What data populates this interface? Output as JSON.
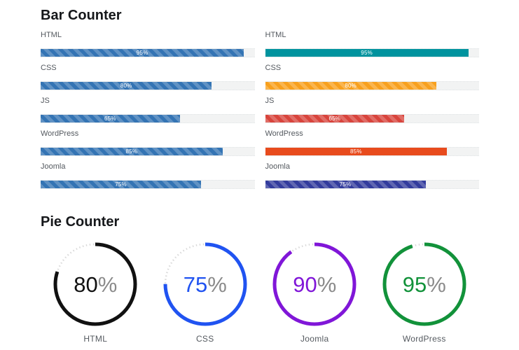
{
  "bar_section": {
    "title": "Bar Counter",
    "track_color": "#f2f3f3",
    "left": [
      {
        "label": "HTML",
        "value": 95,
        "value_label": "95%",
        "color": "#3474b4",
        "striped": true
      },
      {
        "label": "CSS",
        "value": 80,
        "value_label": "80%",
        "color": "#3474b4",
        "striped": true
      },
      {
        "label": "JS",
        "value": 65,
        "value_label": "65%",
        "color": "#3474b4",
        "striped": true
      },
      {
        "label": "WordPress",
        "value": 85,
        "value_label": "85%",
        "color": "#3474b4",
        "striped": true
      },
      {
        "label": "Joomla",
        "value": 75,
        "value_label": "75%",
        "color": "#3474b4",
        "striped": true
      }
    ],
    "right": [
      {
        "label": "HTML",
        "value": 95,
        "value_label": "95%",
        "color": "#00939e",
        "striped": false
      },
      {
        "label": "CSS",
        "value": 80,
        "value_label": "80%",
        "color": "#f8a01d",
        "striped": true
      },
      {
        "label": "JS",
        "value": 65,
        "value_label": "65%",
        "color": "#d8443c",
        "striped": true
      },
      {
        "label": "WordPress",
        "value": 85,
        "value_label": "85%",
        "color": "#e84b1d",
        "striped": false
      },
      {
        "label": "Joomla",
        "value": 75,
        "value_label": "75%",
        "color": "#333c9d",
        "striped": true
      }
    ]
  },
  "pie_section": {
    "title": "Pie Counter",
    "pies": [
      {
        "label": "HTML",
        "value": 80,
        "number": "80",
        "percent_sign": "%",
        "color": "#111111"
      },
      {
        "label": "CSS",
        "value": 75,
        "number": "75",
        "percent_sign": "%",
        "color": "#2053f1"
      },
      {
        "label": "Joomla",
        "value": 90,
        "number": "90",
        "percent_sign": "%",
        "color": "#8016d8"
      },
      {
        "label": "WordPress",
        "value": 95,
        "number": "95",
        "percent_sign": "%",
        "color": "#12923a"
      }
    ]
  },
  "chart_data": [
    {
      "type": "bar",
      "orientation": "horizontal",
      "title": "Bar Counter",
      "group": "left",
      "categories": [
        "HTML",
        "CSS",
        "JS",
        "WordPress",
        "Joomla"
      ],
      "values": [
        95,
        80,
        65,
        85,
        75
      ],
      "unit": "%",
      "xlim": [
        0,
        100
      ],
      "grid": false,
      "legend": false
    },
    {
      "type": "bar",
      "orientation": "horizontal",
      "title": "Bar Counter",
      "group": "right",
      "categories": [
        "HTML",
        "CSS",
        "JS",
        "WordPress",
        "Joomla"
      ],
      "values": [
        95,
        80,
        65,
        85,
        75
      ],
      "unit": "%",
      "xlim": [
        0,
        100
      ],
      "grid": false,
      "legend": false,
      "bar_colors": [
        "#00939e",
        "#f8a01d",
        "#d8443c",
        "#e84b1d",
        "#333c9d"
      ]
    },
    {
      "type": "pie",
      "variant": "radial-progress",
      "title": "Pie Counter",
      "categories": [
        "HTML",
        "CSS",
        "Joomla",
        "WordPress"
      ],
      "values": [
        80,
        75,
        90,
        95
      ],
      "unit": "%",
      "colors": [
        "#111111",
        "#2053f1",
        "#8016d8",
        "#12923a"
      ]
    }
  ]
}
